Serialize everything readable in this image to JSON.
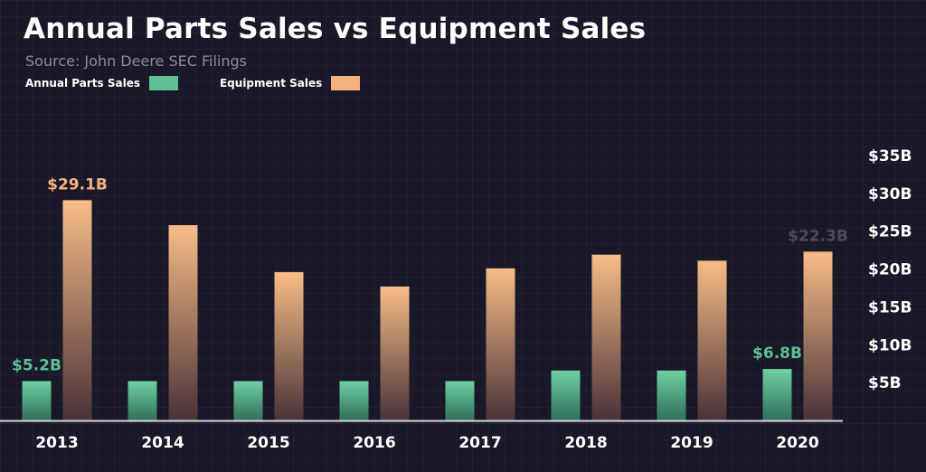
{
  "colors": {
    "parts": "#5fbf93",
    "equipment": "#f3b27d",
    "axis": "#d8d8de",
    "text": "#ffffff",
    "muted_label": "#4a4a5a"
  },
  "chart_data": {
    "type": "bar",
    "title": "Annual Parts Sales vs Equipment Sales",
    "subtitle": "Source: John Deere SEC Filings",
    "categories": [
      "2013",
      "2014",
      "2015",
      "2016",
      "2017",
      "2018",
      "2019",
      "2020"
    ],
    "series": [
      {
        "name": "Annual Parts Sales",
        "color": "#5fbf93",
        "values": [
          5.2,
          5.2,
          5.2,
          5.2,
          5.2,
          6.6,
          6.6,
          6.8
        ]
      },
      {
        "name": "Equipment Sales",
        "color": "#f3b27d",
        "values": [
          29.1,
          25.8,
          19.6,
          17.7,
          20.1,
          21.9,
          21.1,
          22.3
        ]
      }
    ],
    "data_labels": [
      {
        "series": 0,
        "index": 0,
        "text": "$5.2B"
      },
      {
        "series": 1,
        "index": 0,
        "text": "$29.1B"
      },
      {
        "series": 0,
        "index": 7,
        "text": "$6.8B"
      },
      {
        "series": 1,
        "index": 7,
        "text": "$22.3B",
        "muted": true
      }
    ],
    "y_ticks": [
      {
        "value": 5,
        "label": "$5B"
      },
      {
        "value": 10,
        "label": "$10B"
      },
      {
        "value": 15,
        "label": "$15B"
      },
      {
        "value": 20,
        "label": "$20B"
      },
      {
        "value": 25,
        "label": "$25B"
      },
      {
        "value": 30,
        "label": "$30B"
      },
      {
        "value": 35,
        "label": "$35B"
      }
    ],
    "ylim": [
      0,
      35
    ],
    "y_axis_side": "right",
    "legend_position": "top-left",
    "grid": false
  }
}
